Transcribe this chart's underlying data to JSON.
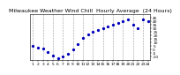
{
  "title": "Milwaukee Weather Wind Chill  Hourly Average  (24 Hours)",
  "hours": [
    1,
    2,
    3,
    4,
    5,
    6,
    7,
    8,
    9,
    10,
    11,
    12,
    13,
    14,
    15,
    16,
    17,
    18,
    19,
    20,
    21,
    22,
    23,
    24
  ],
  "wind_chill": [
    5,
    3,
    1,
    -3,
    -8,
    -12,
    -10,
    -6,
    0,
    8,
    16,
    22,
    25,
    28,
    30,
    32,
    35,
    38,
    40,
    42,
    35,
    30,
    42,
    40
  ],
  "dot_color": "#0000bb",
  "bg_color": "#ffffff",
  "grid_color": "#999999",
  "ylim_min": -15,
  "ylim_max": 50,
  "ytick_values": [
    -10,
    -5,
    0,
    5,
    10,
    15,
    20,
    25,
    30,
    35,
    40,
    45
  ],
  "xtick_major": [
    1,
    3,
    5,
    7,
    9,
    11,
    13,
    15,
    17,
    19,
    21,
    23
  ],
  "xtick_all": [
    1,
    2,
    3,
    4,
    5,
    6,
    7,
    8,
    9,
    10,
    11,
    12,
    13,
    14,
    15,
    16,
    17,
    18,
    19,
    20,
    21,
    22,
    23,
    24
  ],
  "title_fontsize": 4.5,
  "tick_fontsize": 3.2,
  "dot_size": 1.8,
  "grid_linewidth": 0.4,
  "spine_linewidth": 0.4
}
